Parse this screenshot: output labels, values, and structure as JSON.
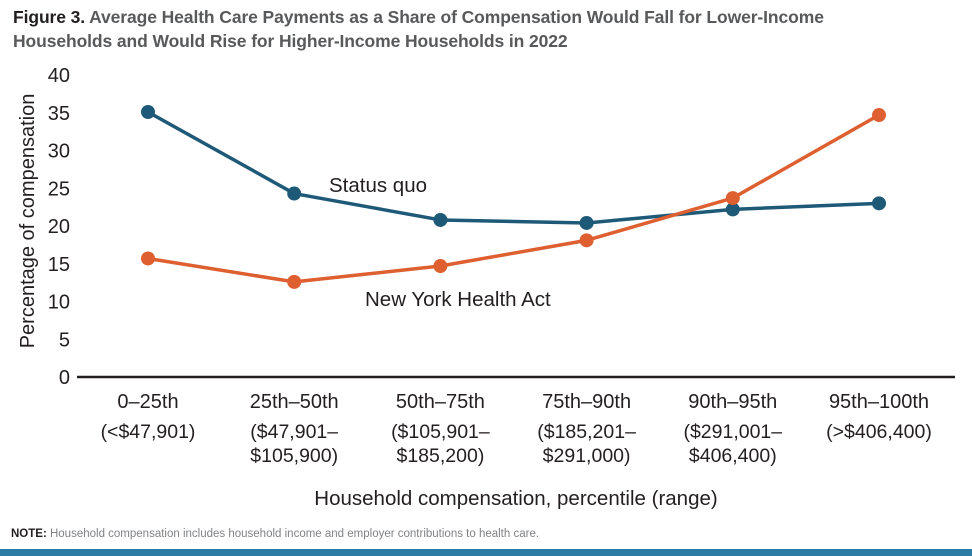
{
  "header": {
    "figure_label": "Figure 3.",
    "title": "Average Health Care Payments as a Share of Compensation Would Fall for Lower-Income Households and Would Rise for Higher-Income Households in 2022"
  },
  "chart_data": {
    "type": "line",
    "categories": [
      "0–25th",
      "25th–50th",
      "50th–75th",
      "75th–90th",
      "90th–95th",
      "95th–100th"
    ],
    "category_ranges": [
      [
        "(<$47,901)"
      ],
      [
        "($47,901–",
        "$105,900)"
      ],
      [
        "($105,901–",
        "$185,200)"
      ],
      [
        "($185,201–",
        "$291,000)"
      ],
      [
        "($291,001–",
        "$406,400)"
      ],
      [
        "(>$406,400)"
      ]
    ],
    "series": [
      {
        "name": "Status quo",
        "color": "#1e5a78",
        "values": [
          35.1,
          24.3,
          20.8,
          20.4,
          22.2,
          23.0
        ]
      },
      {
        "name": "New York Health Act",
        "color": "#de5f30",
        "values": [
          15.7,
          12.6,
          14.7,
          18.1,
          23.7,
          34.7
        ]
      }
    ],
    "xlabel": "Household compensation, percentile (range)",
    "ylabel": "Percentage of compensation",
    "ylim": [
      0,
      40
    ],
    "ytick_step": 5,
    "grid": false,
    "legend_position": "inline-labels"
  },
  "note": {
    "label": "NOTE:",
    "text": "Household compensation includes household income and employer contributions to health care."
  },
  "footer": {
    "accent_bar_color": "#2d7ca6"
  }
}
